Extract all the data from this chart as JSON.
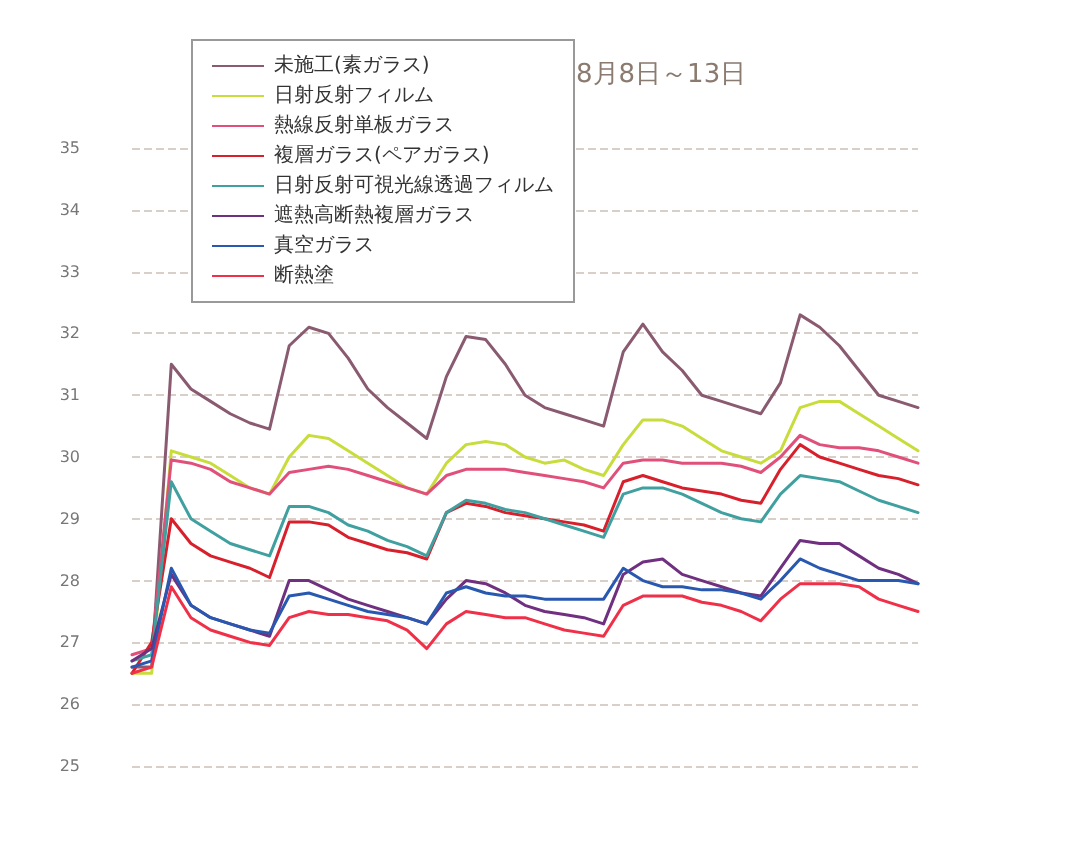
{
  "chart_data": {
    "type": "line",
    "title": "8月8日～13日",
    "categories": [
      null,
      null,
      null,
      null,
      null,
      null,
      null,
      null,
      null,
      null,
      null,
      null,
      null,
      null,
      null,
      null,
      null,
      null,
      null,
      null,
      null,
      null,
      null,
      null,
      null,
      null,
      null,
      null,
      null,
      null,
      null,
      null,
      null,
      null,
      null,
      null,
      null,
      null,
      null,
      null,
      null
    ],
    "ylim": [
      25,
      35
    ],
    "yticks": [
      25,
      26,
      27,
      28,
      29,
      30,
      31,
      32,
      33,
      34,
      35
    ],
    "grid": "y",
    "tick_labels": "y",
    "legend": "top left",
    "marker": "none",
    "line_style": "solid",
    "series": [
      {
        "name": "未施工(素ガラス)",
        "color": "#8a5a70",
        "values": [
          26.6,
          26.6,
          31.5,
          31.1,
          30.9,
          30.7,
          30.55,
          30.45,
          31.8,
          32.1,
          32.0,
          31.6,
          31.1,
          30.8,
          30.55,
          30.3,
          31.3,
          31.95,
          31.9,
          31.5,
          31.0,
          30.8,
          30.7,
          30.6,
          30.5,
          31.7,
          32.15,
          31.7,
          31.4,
          31.0,
          30.9,
          30.8,
          30.7,
          31.2,
          32.3,
          32.1,
          31.8,
          31.4,
          31.0,
          30.9,
          30.8
        ]
      },
      {
        "name": "日射反射フィルム",
        "color": "#c8dc3c",
        "values": [
          26.5,
          26.5,
          30.1,
          30.0,
          29.9,
          29.7,
          29.5,
          29.4,
          30.0,
          30.35,
          30.3,
          30.1,
          29.9,
          29.7,
          29.5,
          29.4,
          29.9,
          30.2,
          30.25,
          30.2,
          30.0,
          29.9,
          29.95,
          29.8,
          29.7,
          30.2,
          30.6,
          30.6,
          30.5,
          30.3,
          30.1,
          30.0,
          29.9,
          30.1,
          30.8,
          30.9,
          30.9,
          30.7,
          30.5,
          30.3,
          30.1
        ]
      },
      {
        "name": "熱線反射単板ガラス",
        "color": "#e0507a",
        "values": [
          26.8,
          26.9,
          29.95,
          29.9,
          29.8,
          29.6,
          29.5,
          29.4,
          29.75,
          29.8,
          29.85,
          29.8,
          29.7,
          29.6,
          29.5,
          29.4,
          29.7,
          29.8,
          29.8,
          29.8,
          29.75,
          29.7,
          29.65,
          29.6,
          29.5,
          29.9,
          29.95,
          29.95,
          29.9,
          29.9,
          29.9,
          29.85,
          29.75,
          30.0,
          30.35,
          30.2,
          30.15,
          30.15,
          30.1,
          30.0,
          29.9
        ]
      },
      {
        "name": "複層ガラス(ペアガラス)",
        "color": "#d8202c",
        "values": [
          26.5,
          27.0,
          29.0,
          28.6,
          28.4,
          28.3,
          28.2,
          28.05,
          28.95,
          28.95,
          28.9,
          28.7,
          28.6,
          28.5,
          28.45,
          28.35,
          29.1,
          29.25,
          29.2,
          29.1,
          29.05,
          29.0,
          28.95,
          28.9,
          28.8,
          29.6,
          29.7,
          29.6,
          29.5,
          29.45,
          29.4,
          29.3,
          29.25,
          29.8,
          30.2,
          30.0,
          29.9,
          29.8,
          29.7,
          29.65,
          29.55
        ]
      },
      {
        "name": "日射反射可視光線透過フィルム",
        "color": "#40a0a0",
        "values": [
          26.7,
          26.8,
          29.6,
          29.0,
          28.8,
          28.6,
          28.5,
          28.4,
          29.2,
          29.2,
          29.1,
          28.9,
          28.8,
          28.65,
          28.55,
          28.4,
          29.1,
          29.3,
          29.25,
          29.15,
          29.1,
          29.0,
          28.9,
          28.8,
          28.7,
          29.4,
          29.5,
          29.5,
          29.4,
          29.25,
          29.1,
          29.0,
          28.95,
          29.4,
          29.7,
          29.65,
          29.6,
          29.45,
          29.3,
          29.2,
          29.1
        ]
      },
      {
        "name": "遮熱高断熱複層ガラス",
        "color": "#703080",
        "values": [
          26.7,
          26.9,
          28.1,
          27.6,
          27.4,
          27.3,
          27.2,
          27.1,
          28.0,
          28.0,
          27.85,
          27.7,
          27.6,
          27.5,
          27.4,
          27.3,
          27.7,
          28.0,
          27.95,
          27.8,
          27.6,
          27.5,
          27.45,
          27.4,
          27.3,
          28.1,
          28.3,
          28.35,
          28.1,
          28.0,
          27.9,
          27.8,
          27.75,
          28.2,
          28.65,
          28.6,
          28.6,
          28.4,
          28.2,
          28.1,
          27.95
        ]
      },
      {
        "name": "真空ガラス",
        "color": "#2858b0",
        "values": [
          26.6,
          26.7,
          28.2,
          27.6,
          27.4,
          27.3,
          27.2,
          27.15,
          27.75,
          27.8,
          27.7,
          27.6,
          27.5,
          27.45,
          27.4,
          27.3,
          27.8,
          27.9,
          27.8,
          27.75,
          27.75,
          27.7,
          27.7,
          27.7,
          27.7,
          28.2,
          28.0,
          27.9,
          27.9,
          27.85,
          27.85,
          27.8,
          27.7,
          28.0,
          28.35,
          28.2,
          28.1,
          28.0,
          28.0,
          28.0,
          27.95
        ]
      },
      {
        "name": "断熱塗",
        "color": "#f03048",
        "values": [
          26.5,
          26.6,
          27.9,
          27.4,
          27.2,
          27.1,
          27.0,
          26.95,
          27.4,
          27.5,
          27.45,
          27.45,
          27.4,
          27.35,
          27.2,
          26.9,
          27.3,
          27.5,
          27.45,
          27.4,
          27.4,
          27.3,
          27.2,
          27.15,
          27.1,
          27.6,
          27.75,
          27.75,
          27.75,
          27.65,
          27.6,
          27.5,
          27.35,
          27.7,
          27.95,
          27.95,
          27.95,
          27.9,
          27.7,
          27.6,
          27.5
        ]
      }
    ]
  }
}
